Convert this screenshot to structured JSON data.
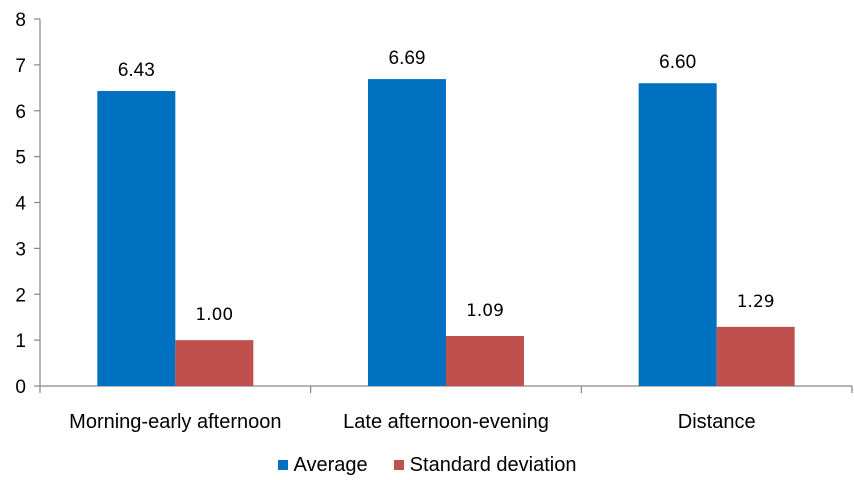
{
  "chart_data": {
    "type": "bar",
    "categories": [
      "Morning-early afternoon",
      "Late afternoon-evening",
      "Distance"
    ],
    "series": [
      {
        "name": "Average",
        "values": [
          6.43,
          6.69,
          6.6
        ],
        "labels": [
          "6.43",
          "6.69",
          "6.60"
        ],
        "color": "#0070C0"
      },
      {
        "name": "Standard deviation",
        "values": [
          1.0,
          1.09,
          1.29
        ],
        "labels": [
          "1.00",
          "1.09",
          "1.29"
        ],
        "color": "#C0504D"
      }
    ],
    "ylim": [
      0,
      8
    ],
    "yticks": [
      "0",
      "1",
      "2",
      "3",
      "4",
      "5",
      "6",
      "7",
      "8"
    ],
    "grid": false,
    "legend_position": "bottom"
  }
}
